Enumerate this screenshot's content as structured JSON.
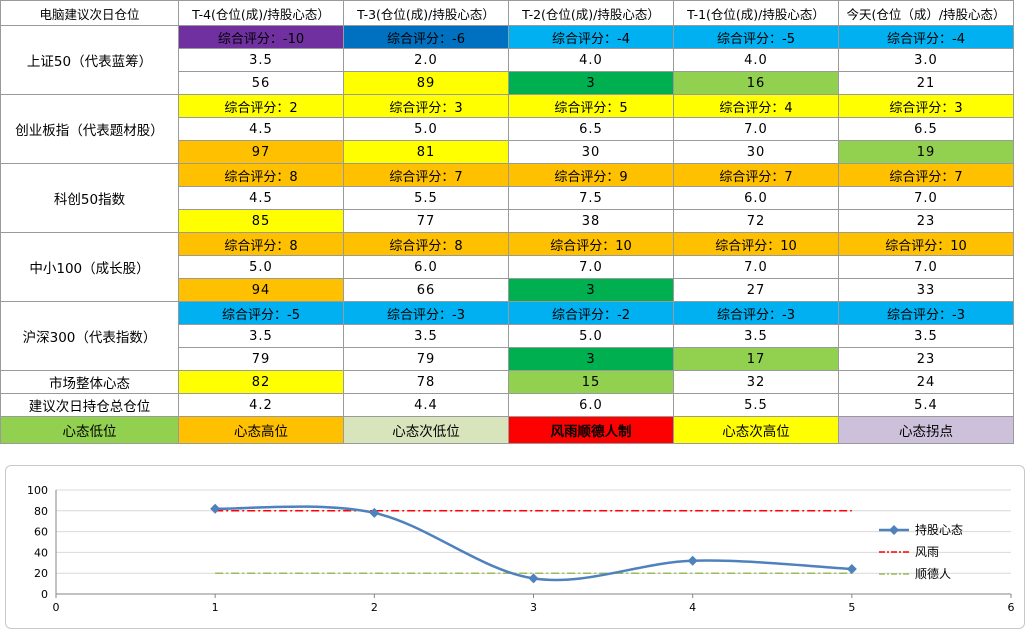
{
  "header": {
    "corner": "电脑建议次日仓位",
    "days": [
      "T-4(仓位(成)/持股心态）",
      "T-3(仓位(成)/持股心态）",
      "T-2(仓位(成)/持股心态）",
      "T-1(仓位(成)/持股心态）",
      "今天(仓位（成）/持股心态）"
    ]
  },
  "indices": [
    {
      "name": "上证50（代表蓝筹）",
      "scores": [
        "综合评分：-10",
        "综合评分：-6",
        "综合评分：-4",
        "综合评分：-5",
        "综合评分：-4"
      ],
      "score_colors": [
        "#7030a0",
        "#0070c0",
        "#00b0f0",
        "#00b0f0",
        "#00b0f0"
      ],
      "positions": [
        "3.5",
        "2.0",
        "4.0",
        "4.0",
        "3.0"
      ],
      "moods": [
        "56",
        "89",
        "3",
        "16",
        "21"
      ],
      "mood_colors": [
        "#ffffff",
        "#ffff00",
        "#00b050",
        "#92d050",
        "#ffffff"
      ]
    },
    {
      "name": "创业板指（代表题材股）",
      "scores": [
        "综合评分：2",
        "综合评分：3",
        "综合评分：5",
        "综合评分：4",
        "综合评分：3"
      ],
      "score_colors": [
        "#ffff00",
        "#ffff00",
        "#ffff00",
        "#ffff00",
        "#ffff00"
      ],
      "positions": [
        "4.5",
        "5.0",
        "6.5",
        "7.0",
        "6.5"
      ],
      "moods": [
        "97",
        "81",
        "30",
        "30",
        "19"
      ],
      "mood_colors": [
        "#ffc000",
        "#ffff00",
        "#ffffff",
        "#ffffff",
        "#92d050"
      ]
    },
    {
      "name": "科创50指数",
      "scores": [
        "综合评分：8",
        "综合评分：7",
        "综合评分：9",
        "综合评分：7",
        "综合评分：7"
      ],
      "score_colors": [
        "#ffc000",
        "#ffc000",
        "#ffc000",
        "#ffc000",
        "#ffc000"
      ],
      "positions": [
        "4.5",
        "5.5",
        "7.5",
        "6.0",
        "7.0"
      ],
      "moods": [
        "85",
        "77",
        "38",
        "72",
        "23"
      ],
      "mood_colors": [
        "#ffff00",
        "#ffffff",
        "#ffffff",
        "#ffffff",
        "#ffffff"
      ]
    },
    {
      "name": "中小100（成长股）",
      "scores": [
        "综合评分：8",
        "综合评分：8",
        "综合评分：10",
        "综合评分：10",
        "综合评分：10"
      ],
      "score_colors": [
        "#ffc000",
        "#ffc000",
        "#ffc000",
        "#ffc000",
        "#ffc000"
      ],
      "positions": [
        "5.0",
        "6.0",
        "7.0",
        "7.0",
        "7.0"
      ],
      "moods": [
        "94",
        "66",
        "3",
        "27",
        "33"
      ],
      "mood_colors": [
        "#ffc000",
        "#ffffff",
        "#00b050",
        "#ffffff",
        "#ffffff"
      ]
    },
    {
      "name": "沪深300（代表指数）",
      "scores": [
        "综合评分：-5",
        "综合评分：-3",
        "综合评分：-2",
        "综合评分：-3",
        "综合评分：-3"
      ],
      "score_colors": [
        "#00b0f0",
        "#00b0f0",
        "#00b0f0",
        "#00b0f0",
        "#00b0f0"
      ],
      "positions": [
        "3.5",
        "3.5",
        "5.0",
        "3.5",
        "3.5"
      ],
      "moods": [
        "79",
        "79",
        "3",
        "17",
        "23"
      ],
      "mood_colors": [
        "#ffffff",
        "#ffffff",
        "#00b050",
        "#92d050",
        "#ffffff"
      ]
    }
  ],
  "market": {
    "label": "市场整体心态",
    "values": [
      "82",
      "78",
      "15",
      "32",
      "24"
    ],
    "colors": [
      "#ffff00",
      "#ffffff",
      "#92d050",
      "#ffffff",
      "#ffffff"
    ]
  },
  "suggest": {
    "label": "建议次日持仓总仓位",
    "values": [
      "4.2",
      "4.4",
      "6.0",
      "5.5",
      "5.4"
    ]
  },
  "legend_row": [
    {
      "label": "心态低位",
      "color": "#92d050",
      "bold": false
    },
    {
      "label": "心态高位",
      "color": "#ffc000",
      "bold": false
    },
    {
      "label": "心态次低位",
      "color": "#d8e4bc",
      "bold": false
    },
    {
      "label": "风雨顺德人制",
      "color": "#ff0000",
      "bold": true
    },
    {
      "label": "心态次高位",
      "color": "#ffff00",
      "bold": false
    },
    {
      "label": "心态拐点",
      "color": "#ccc0da",
      "bold": false
    }
  ],
  "chart_data": {
    "type": "line",
    "x": [
      1,
      2,
      3,
      4,
      5
    ],
    "xlim": [
      0,
      6
    ],
    "ylim": [
      0,
      100
    ],
    "x_ticks": [
      0,
      1,
      2,
      3,
      4,
      5,
      6
    ],
    "y_ticks": [
      0,
      20,
      40,
      60,
      80,
      100
    ],
    "grid": "horizontal",
    "legend_position": "right",
    "series": [
      {
        "name": "持股心态",
        "values": [
          82,
          78,
          15,
          32,
          24
        ],
        "color": "#4f81bd",
        "style": "smooth-diamond"
      },
      {
        "name": "风雨",
        "values": [
          80,
          80,
          80,
          80,
          80
        ],
        "color": "#ff0000",
        "style": "dash-dot"
      },
      {
        "name": "顺德人",
        "values": [
          20,
          20,
          20,
          20,
          20
        ],
        "color": "#9bbb59",
        "style": "dash-dot"
      }
    ]
  }
}
